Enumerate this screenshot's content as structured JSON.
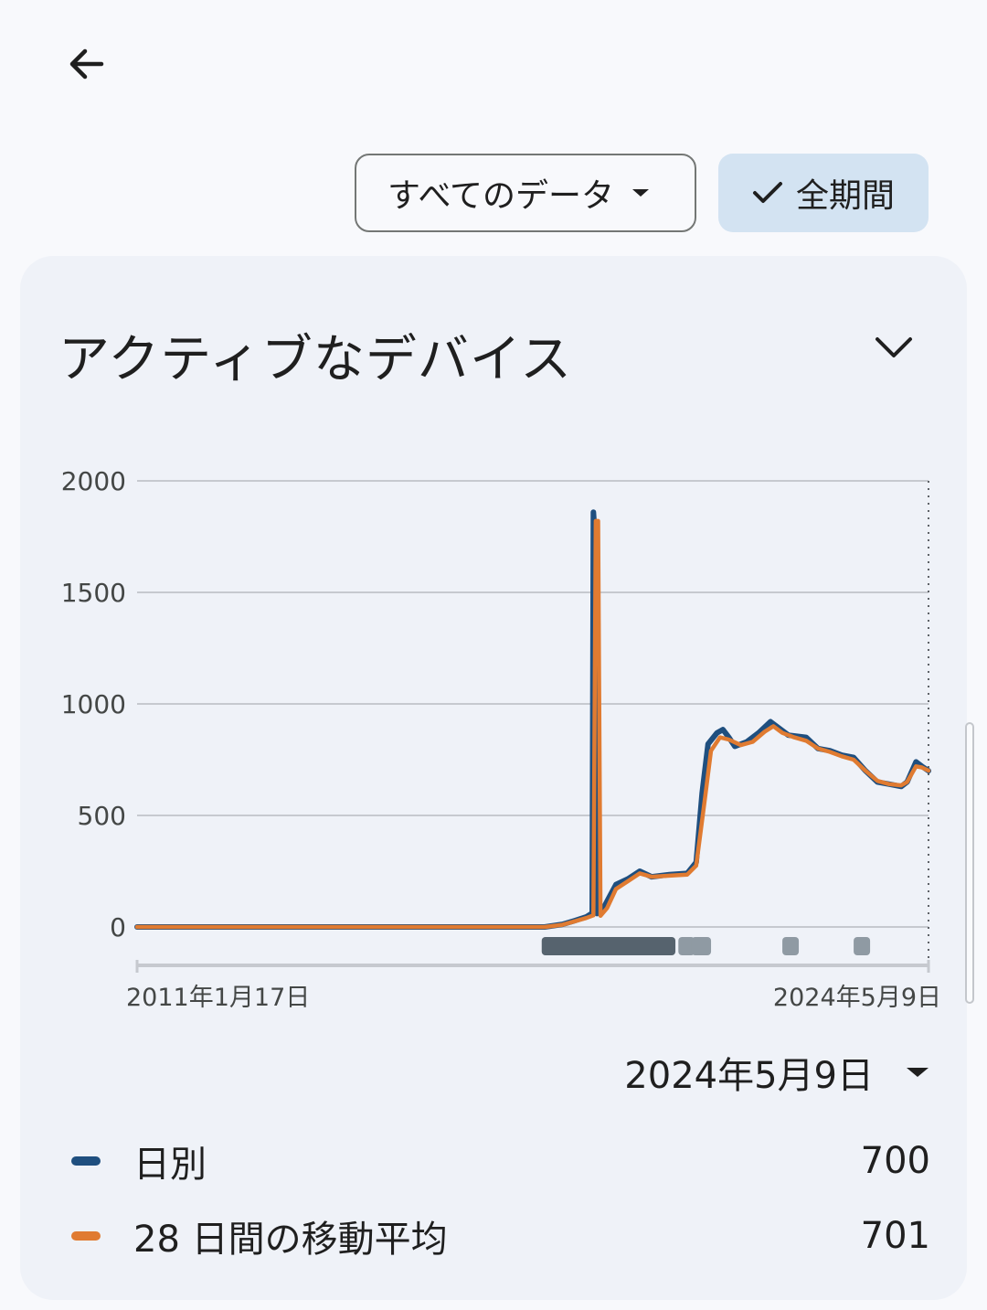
{
  "header": {
    "back_icon": "arrow-back-icon"
  },
  "filters": {
    "data_filter_label": "すべてのデータ",
    "period_label": "全期間",
    "period_selected": true
  },
  "card": {
    "title": "アクティブなデバイス",
    "selected_date": "2024年5月9日"
  },
  "legend": [
    {
      "name": "日別",
      "value": "700",
      "color": "#1f4f7f"
    },
    {
      "name": "28 日間の移動平均",
      "value": "701",
      "color": "#e07b31"
    }
  ],
  "chart_data": {
    "type": "line",
    "x_labels": [
      "2011年1月17日",
      "2024年5月9日"
    ],
    "y_ticks": [
      0,
      500,
      1000,
      1500,
      2000
    ],
    "ylim": [
      0,
      2000
    ],
    "grid": true,
    "x_span_years": [
      2011.04,
      2024.36
    ],
    "series": [
      {
        "name": "日別",
        "color": "#1f4f7f",
        "points": [
          [
            2011.04,
            0
          ],
          [
            2017.9,
            0
          ],
          [
            2018.2,
            12
          ],
          [
            2018.4,
            28
          ],
          [
            2018.6,
            45
          ],
          [
            2018.7,
            62
          ],
          [
            2018.72,
            1860
          ],
          [
            2018.76,
            1700
          ],
          [
            2018.78,
            60
          ],
          [
            2018.9,
            90
          ],
          [
            2019.0,
            140
          ],
          [
            2019.1,
            190
          ],
          [
            2019.3,
            215
          ],
          [
            2019.5,
            250
          ],
          [
            2019.7,
            225
          ],
          [
            2020.0,
            235
          ],
          [
            2020.3,
            240
          ],
          [
            2020.45,
            290
          ],
          [
            2020.55,
            600
          ],
          [
            2020.65,
            820
          ],
          [
            2020.8,
            870
          ],
          [
            2020.9,
            885
          ],
          [
            2021.0,
            850
          ],
          [
            2021.1,
            810
          ],
          [
            2021.3,
            830
          ],
          [
            2021.5,
            870
          ],
          [
            2021.7,
            920
          ],
          [
            2021.9,
            880
          ],
          [
            2022.0,
            860
          ],
          [
            2022.3,
            850
          ],
          [
            2022.5,
            800
          ],
          [
            2022.7,
            790
          ],
          [
            2022.9,
            770
          ],
          [
            2023.1,
            760
          ],
          [
            2023.3,
            700
          ],
          [
            2023.5,
            650
          ],
          [
            2023.7,
            640
          ],
          [
            2023.9,
            630
          ],
          [
            2024.0,
            650
          ],
          [
            2024.15,
            740
          ],
          [
            2024.25,
            720
          ],
          [
            2024.36,
            700
          ]
        ]
      },
      {
        "name": "28 日間の移動平均",
        "color": "#e07b31",
        "points": [
          [
            2011.04,
            0
          ],
          [
            2017.9,
            0
          ],
          [
            2018.2,
            10
          ],
          [
            2018.4,
            25
          ],
          [
            2018.6,
            40
          ],
          [
            2018.72,
            52
          ],
          [
            2018.76,
            1820
          ],
          [
            2018.8,
            1820
          ],
          [
            2018.84,
            50
          ],
          [
            2018.95,
            85
          ],
          [
            2019.1,
            170
          ],
          [
            2019.3,
            205
          ],
          [
            2019.5,
            240
          ],
          [
            2019.7,
            225
          ],
          [
            2020.0,
            230
          ],
          [
            2020.3,
            235
          ],
          [
            2020.45,
            275
          ],
          [
            2020.6,
            580
          ],
          [
            2020.7,
            790
          ],
          [
            2020.85,
            850
          ],
          [
            2021.0,
            840
          ],
          [
            2021.2,
            815
          ],
          [
            2021.4,
            830
          ],
          [
            2021.6,
            875
          ],
          [
            2021.75,
            900
          ],
          [
            2021.9,
            870
          ],
          [
            2022.1,
            850
          ],
          [
            2022.3,
            835
          ],
          [
            2022.5,
            800
          ],
          [
            2022.7,
            785
          ],
          [
            2022.9,
            765
          ],
          [
            2023.1,
            750
          ],
          [
            2023.3,
            700
          ],
          [
            2023.5,
            655
          ],
          [
            2023.7,
            640
          ],
          [
            2023.9,
            635
          ],
          [
            2024.0,
            650
          ],
          [
            2024.15,
            720
          ],
          [
            2024.25,
            715
          ],
          [
            2024.36,
            701
          ]
        ]
      }
    ],
    "annotation_marks": [
      {
        "start": 2017.85,
        "end": 2020.1
      },
      {
        "start": 2020.15,
        "end": 2020.35
      },
      {
        "start": 2020.37,
        "end": 2020.7
      },
      {
        "start": 2021.9,
        "end": 2022.12
      },
      {
        "start": 2023.1,
        "end": 2023.32
      }
    ]
  }
}
